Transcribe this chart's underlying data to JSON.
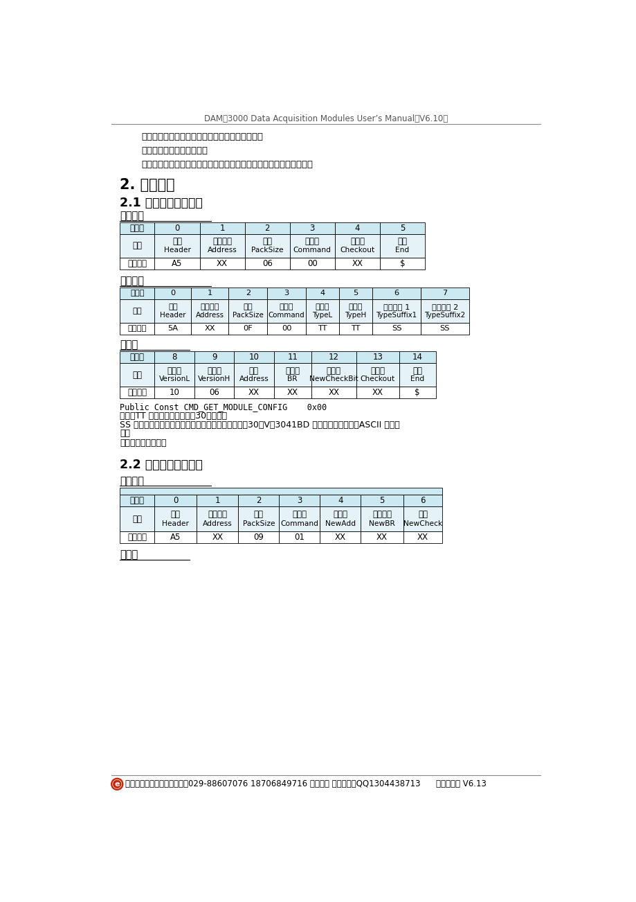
{
  "header_text": "DAM－3000 Data Acquisition Modules User’s Manual（V6.10）",
  "footer_text": "如有疑问请咏询高级工程师：029-88607076 18706849716 （李威） 在线咏询：QQ1304438713      硬件说明书 V6.13",
  "para1": "指令格式中数字没有特殊说明的都是十六进制数。",
  "para2": "包长指整个数据包的长度。",
  "para3": "校验方法为数据包中的数据（不含校验值）相异或的结果，即校验值。",
  "section2": "2. 通用命令",
  "section21": "2.1 获得模块基本信息",
  "send_label": "发送请求",
  "table1_header_row": [
    "字节号",
    "0",
    "1",
    "2",
    "3",
    "4",
    "5"
  ],
  "table1_func_top": [
    "功能",
    "报头",
    "模块地址",
    "包长",
    "命令字",
    "校验值",
    "报尾"
  ],
  "table1_func_bot": [
    "",
    "Header",
    "Address",
    "PackSize",
    "Command",
    "Checkout",
    "End"
  ],
  "table1_cmd_row": [
    "指令格式",
    "A5",
    "XX",
    "06",
    "00",
    "XX",
    "$"
  ],
  "reply_label": "返回应答",
  "table2_header_row": [
    "字节号",
    "0",
    "1",
    "2",
    "3",
    "4",
    "5",
    "6",
    "7"
  ],
  "table2_func_top": [
    "功能",
    "报头",
    "模块地址",
    "包长",
    "命令字",
    "类型低",
    "类型高",
    "类型后缀 1",
    "类型后缀 2"
  ],
  "table2_func_bot": [
    "",
    "Header",
    "Address",
    "PackSize",
    "Command",
    "TypeL",
    "TypeH",
    "TypeSuffix1",
    "TypeSuffix2"
  ],
  "table2_cmd_row": [
    "指令格式",
    "5A",
    "XX",
    "0F",
    "00",
    "TT",
    "TT",
    "SS",
    "SS"
  ],
  "jieshang_label": "接上表",
  "table3_header_row": [
    "字节号",
    "8",
    "9",
    "10",
    "11",
    "12",
    "13",
    "14"
  ],
  "table3_func_top": [
    "功能",
    "版本号",
    "版本号",
    "地址",
    "波特率",
    "校验位",
    "校验值",
    "报尾"
  ],
  "table3_func_bot": [
    "",
    "VersionL",
    "VersionH",
    "Address",
    "BR",
    "NewCheckBit",
    "Checkout",
    "End"
  ],
  "table3_cmd_row": [
    "指令格式",
    "10",
    "06",
    "XX",
    "XX",
    "XX",
    "XX",
    "$"
  ],
  "note1": "Public Const CMD_GET_MODULE_CONFIG    0x00",
  "note2": "说明：TT 表示模块型号（例妆30数等）。",
  "note3": "SS 表示类型后缀，即同一模块型号的不同后缀（例妆30数V，3041BD 等），两个后缀均以ASCII 形式传",
  "note3b": "送，",
  "note4": "没有时以空格代替。",
  "section22": "2.2 设置模块基本信息",
  "send2_label": "发送请求",
  "table4_header_row": [
    "字节号",
    "0",
    "1",
    "2",
    "3",
    "4",
    "5",
    "6"
  ],
  "table4_func_top": [
    "功能",
    "报头",
    "模块地址",
    "包长",
    "命令字",
    "新地址",
    "新波特率",
    "校验"
  ],
  "table4_func_bot": [
    "",
    "Header",
    "Address",
    "PackSize",
    "Command",
    "NewAdd",
    "NewBR",
    "NewCheck"
  ],
  "table4_cmd_row": [
    "指令格式",
    "A5",
    "XX",
    "09",
    "01",
    "XX",
    "XX",
    "XX"
  ],
  "jieshang2_label": "接上表",
  "bg_color": "#ffffff",
  "table_header_bg": "#cce8f0",
  "table_func_bg": "#e5f3f8",
  "table_cmd_bg": "#ffffff",
  "border_color": "#000000",
  "text_color": "#000000",
  "header_line_color": "#888888",
  "footer_line_color": "#888888"
}
